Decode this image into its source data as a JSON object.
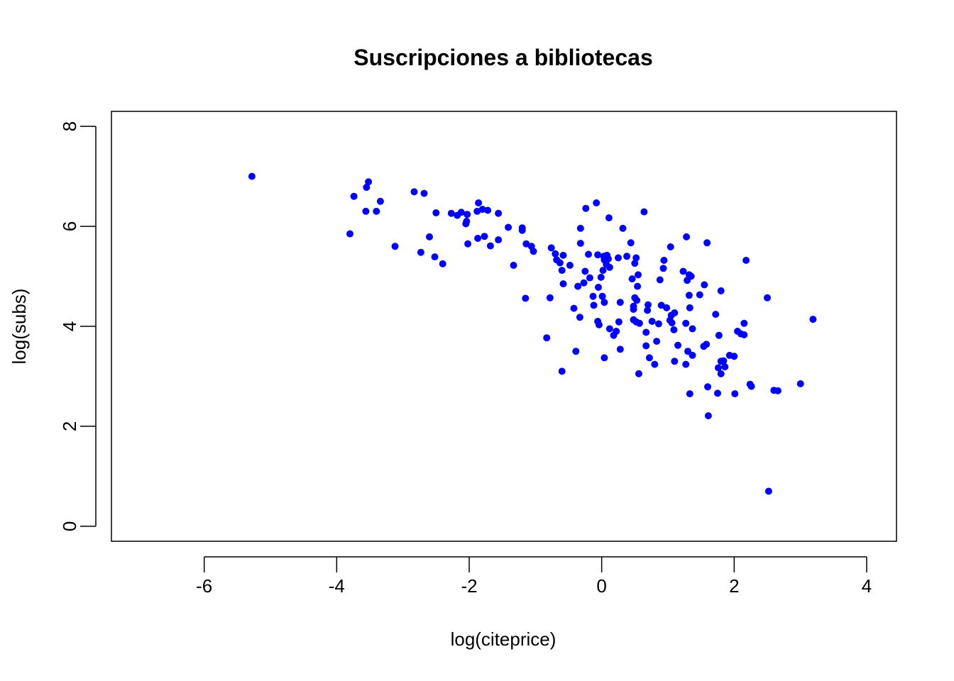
{
  "chart_data": {
    "type": "scatter",
    "title": "Suscripciones a bibliotecas",
    "xlabel": "log(citeprice)",
    "ylabel": "log(subs)",
    "xlim": [
      -7.4,
      4.45
    ],
    "ylim": [
      -0.3,
      8.3
    ],
    "xticks": [
      -6,
      -4,
      -2,
      0,
      2,
      4
    ],
    "yticks": [
      0,
      2,
      4,
      6,
      8
    ],
    "point_color": "#0000ff",
    "grid": false,
    "legend": "none",
    "points": [
      [
        -5.28,
        7.0
      ],
      [
        -3.52,
        6.89
      ],
      [
        -3.55,
        6.78
      ],
      [
        -3.74,
        6.6
      ],
      [
        -3.34,
        6.5
      ],
      [
        -3.56,
        6.3
      ],
      [
        -3.4,
        6.3
      ],
      [
        -3.8,
        5.85
      ],
      [
        -3.12,
        5.6
      ],
      [
        -2.83,
        6.69
      ],
      [
        -2.68,
        6.66
      ],
      [
        -2.5,
        6.27
      ],
      [
        -2.6,
        5.79
      ],
      [
        -2.73,
        5.48
      ],
      [
        -2.52,
        5.39
      ],
      [
        -2.4,
        5.25
      ],
      [
        -2.27,
        6.26
      ],
      [
        -2.18,
        6.22
      ],
      [
        -2.12,
        6.28
      ],
      [
        -2.03,
        6.24
      ],
      [
        -2.05,
        6.05
      ],
      [
        -2.04,
        6.1
      ],
      [
        -2.02,
        5.65
      ],
      [
        -1.86,
        6.47
      ],
      [
        -1.88,
        6.3
      ],
      [
        -1.8,
        6.34
      ],
      [
        -1.72,
        6.32
      ],
      [
        -1.56,
        6.26
      ],
      [
        -1.77,
        5.8
      ],
      [
        -1.87,
        5.76
      ],
      [
        -1.68,
        5.61
      ],
      [
        -1.56,
        5.73
      ],
      [
        -1.41,
        5.98
      ],
      [
        -1.2,
        5.97
      ],
      [
        -1.2,
        5.92
      ],
      [
        -1.14,
        5.65
      ],
      [
        -1.06,
        5.6
      ],
      [
        -1.03,
        5.5
      ],
      [
        -1.33,
        5.22
      ],
      [
        -1.15,
        4.56
      ],
      [
        -0.76,
        5.57
      ],
      [
        -0.7,
        5.45
      ],
      [
        -0.58,
        5.42
      ],
      [
        -0.68,
        5.33
      ],
      [
        -0.63,
        5.27
      ],
      [
        -0.6,
        5.12
      ],
      [
        -0.48,
        5.22
      ],
      [
        -0.58,
        4.85
      ],
      [
        -0.78,
        4.57
      ],
      [
        -0.83,
        3.77
      ],
      [
        -0.6,
        3.1
      ],
      [
        -0.32,
        5.96
      ],
      [
        -0.24,
        6.36
      ],
      [
        -0.08,
        6.47
      ],
      [
        -0.2,
        5.44
      ],
      [
        -0.32,
        5.66
      ],
      [
        -0.06,
        5.43
      ],
      [
        -0.25,
        5.1
      ],
      [
        -0.18,
        4.97
      ],
      [
        -0.27,
        4.87
      ],
      [
        -0.36,
        4.8
      ],
      [
        -0.13,
        4.6
      ],
      [
        -0.42,
        4.36
      ],
      [
        -0.33,
        4.18
      ],
      [
        -0.39,
        3.5
      ],
      [
        -0.12,
        4.42
      ],
      [
        -0.06,
        4.1
      ],
      [
        -0.04,
        4.03
      ],
      [
        0.03,
        5.4
      ],
      [
        0.04,
        5.33
      ],
      [
        0.08,
        5.42
      ],
      [
        0.1,
        5.35
      ],
      [
        0.07,
        5.24
      ],
      [
        0.02,
        5.12
      ],
      [
        -0.01,
        4.98
      ],
      [
        0.12,
        5.18
      ],
      [
        -0.05,
        4.78
      ],
      [
        0.01,
        4.6
      ],
      [
        0.04,
        4.48
      ],
      [
        0.12,
        3.95
      ],
      [
        0.18,
        3.82
      ],
      [
        0.04,
        3.37
      ],
      [
        0.11,
        6.17
      ],
      [
        0.32,
        5.96
      ],
      [
        0.25,
        5.37
      ],
      [
        0.38,
        5.4
      ],
      [
        0.44,
        5.67
      ],
      [
        0.28,
        4.48
      ],
      [
        0.22,
        3.9
      ],
      [
        0.26,
        4.09
      ],
      [
        0.28,
        3.54
      ],
      [
        0.64,
        6.29
      ],
      [
        0.52,
        5.37
      ],
      [
        0.5,
        5.26
      ],
      [
        0.55,
        5.03
      ],
      [
        0.46,
        4.95
      ],
      [
        0.54,
        4.8
      ],
      [
        0.5,
        4.57
      ],
      [
        0.53,
        4.52
      ],
      [
        0.48,
        4.4
      ],
      [
        0.48,
        4.34
      ],
      [
        0.48,
        4.13
      ],
      [
        0.52,
        4.09
      ],
      [
        0.57,
        4.06
      ],
      [
        0.56,
        3.05
      ],
      [
        0.94,
        5.32
      ],
      [
        0.93,
        5.16
      ],
      [
        0.88,
        4.93
      ],
      [
        0.7,
        4.43
      ],
      [
        0.69,
        4.32
      ],
      [
        0.9,
        4.42
      ],
      [
        0.98,
        4.37
      ],
      [
        0.76,
        4.1
      ],
      [
        0.67,
        3.88
      ],
      [
        0.86,
        4.05
      ],
      [
        0.83,
        3.7
      ],
      [
        0.67,
        3.61
      ],
      [
        0.72,
        3.37
      ],
      [
        0.8,
        3.24
      ],
      [
        1.04,
        5.59
      ],
      [
        1.05,
        4.22
      ],
      [
        1.03,
        4.12
      ],
      [
        1.1,
        4.27
      ],
      [
        1.06,
        4.07
      ],
      [
        1.09,
        3.93
      ],
      [
        1.15,
        3.62
      ],
      [
        1.1,
        3.3
      ],
      [
        1.28,
        5.79
      ],
      [
        1.23,
        5.1
      ],
      [
        1.29,
        4.92
      ],
      [
        1.32,
        5.03
      ],
      [
        1.35,
        5.0
      ],
      [
        1.32,
        4.62
      ],
      [
        1.33,
        4.37
      ],
      [
        1.27,
        4.06
      ],
      [
        1.37,
        3.95
      ],
      [
        1.3,
        3.5
      ],
      [
        1.37,
        3.42
      ],
      [
        1.27,
        3.24
      ],
      [
        1.33,
        2.65
      ],
      [
        1.59,
        5.67
      ],
      [
        1.55,
        4.83
      ],
      [
        1.48,
        4.63
      ],
      [
        1.72,
        4.24
      ],
      [
        1.58,
        3.64
      ],
      [
        1.54,
        3.6
      ],
      [
        1.6,
        2.79
      ],
      [
        1.61,
        2.21
      ],
      [
        1.8,
        4.71
      ],
      [
        1.77,
        3.82
      ],
      [
        1.76,
        3.17
      ],
      [
        1.8,
        3.3
      ],
      [
        1.84,
        3.31
      ],
      [
        1.8,
        3.05
      ],
      [
        1.86,
        3.19
      ],
      [
        1.75,
        2.66
      ],
      [
        1.93,
        3.42
      ],
      [
        2.18,
        5.32
      ],
      [
        2.05,
        3.9
      ],
      [
        2.1,
        3.85
      ],
      [
        2.15,
        3.83
      ],
      [
        2.15,
        4.06
      ],
      [
        2.0,
        3.4
      ],
      [
        2.24,
        2.84
      ],
      [
        2.26,
        2.8
      ],
      [
        2.01,
        2.65
      ],
      [
        2.5,
        4.57
      ],
      [
        2.6,
        2.72
      ],
      [
        2.66,
        2.71
      ],
      [
        3.0,
        2.85
      ],
      [
        3.19,
        4.14
      ],
      [
        2.52,
        0.7
      ]
    ]
  }
}
